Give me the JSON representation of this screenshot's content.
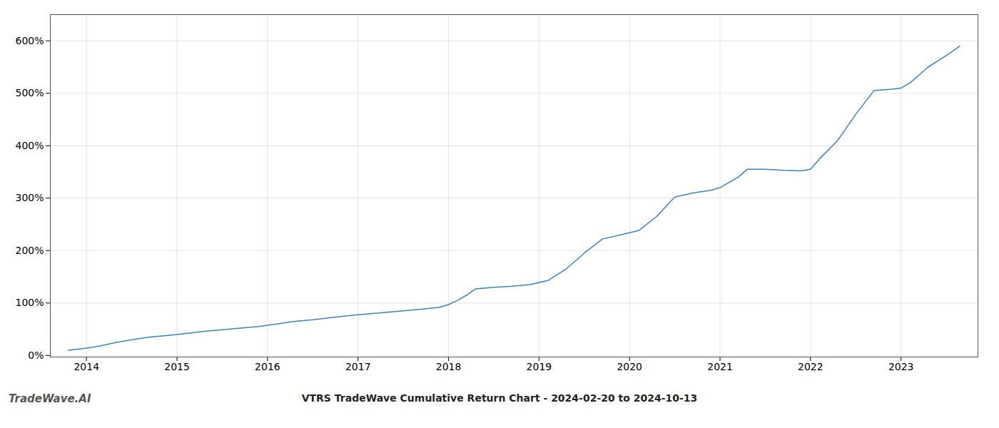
{
  "chart_data": {
    "type": "line",
    "title": "VTRS TradeWave Cumulative Return Chart - 2024-02-20 to 2024-10-13",
    "annotations": [
      "TradeWave.AI"
    ],
    "x": [
      2013.8,
      2014.0,
      2014.15,
      2014.3,
      2014.5,
      2014.7,
      2014.9,
      2015.1,
      2015.3,
      2015.5,
      2015.7,
      2015.9,
      2016.1,
      2016.3,
      2016.5,
      2016.7,
      2016.9,
      2017.1,
      2017.3,
      2017.5,
      2017.7,
      2017.9,
      2018.0,
      2018.1,
      2018.2,
      2018.3,
      2018.5,
      2018.7,
      2018.9,
      2019.1,
      2019.3,
      2019.5,
      2019.7,
      2019.9,
      2020.1,
      2020.3,
      2020.5,
      2020.7,
      2020.9,
      2021.0,
      2021.1,
      2021.2,
      2021.3,
      2021.5,
      2021.7,
      2021.9,
      2022.0,
      2022.1,
      2022.3,
      2022.5,
      2022.7,
      2022.9,
      2023.0,
      2023.1,
      2023.3,
      2023.5,
      2023.65
    ],
    "values": [
      0.1,
      0.14,
      0.18,
      0.24,
      0.3,
      0.35,
      0.38,
      0.42,
      0.46,
      0.49,
      0.52,
      0.55,
      0.6,
      0.65,
      0.68,
      0.72,
      0.76,
      0.79,
      0.82,
      0.85,
      0.88,
      0.92,
      0.97,
      1.05,
      1.15,
      1.27,
      1.3,
      1.32,
      1.35,
      1.43,
      1.65,
      1.95,
      2.22,
      2.3,
      2.38,
      2.65,
      3.02,
      3.1,
      3.15,
      3.2,
      3.3,
      3.4,
      3.55,
      3.55,
      3.53,
      3.52,
      3.55,
      3.75,
      4.1,
      4.6,
      5.05,
      5.08,
      5.1,
      5.2,
      5.5,
      5.72,
      5.9
    ],
    "color": "#3a85c0",
    "xlim": [
      2013.6,
      2023.85
    ],
    "xticks": [
      2014,
      2015,
      2016,
      2017,
      2018,
      2019,
      2020,
      2021,
      2022,
      2023
    ],
    "ylim": [
      -0.03,
      6.5
    ],
    "yticks": [
      {
        "value": 0.0,
        "label": "0%"
      },
      {
        "value": 1.0,
        "label": "100%"
      },
      {
        "value": 2.0,
        "label": "200%"
      },
      {
        "value": 3.0,
        "label": "300%"
      },
      {
        "value": 4.0,
        "label": "400%"
      },
      {
        "value": 5.0,
        "label": "500%"
      },
      {
        "value": 6.0,
        "label": "600%"
      }
    ],
    "grid": true
  }
}
